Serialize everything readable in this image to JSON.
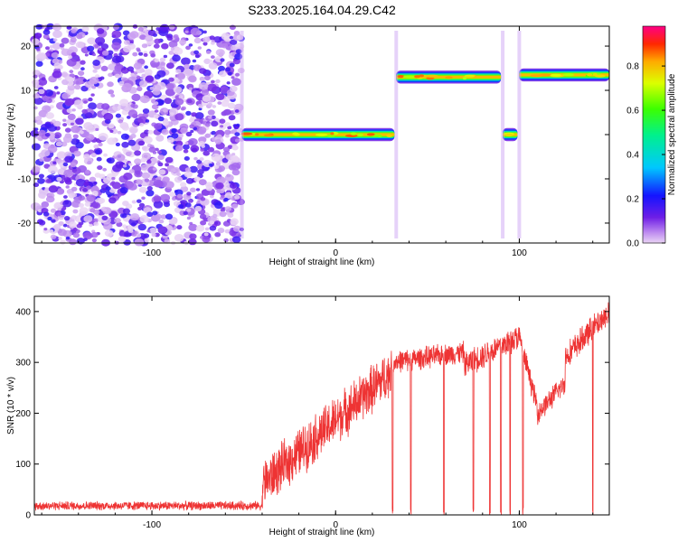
{
  "title": "S233.2025.164.04.29.C42",
  "chart_data": [
    {
      "type": "heatmap",
      "xlabel": "Height of straight line (km)",
      "ylabel": "Frequency (Hz)",
      "xlim": [
        -164,
        149
      ],
      "ylim": [
        -24.5,
        24.5
      ],
      "xticks": [
        -100,
        0,
        100
      ],
      "yticks": [
        -20,
        -10,
        0,
        10,
        20
      ],
      "colorbar": {
        "label": "Normalized spectral amplitude",
        "range": [
          0.0,
          0.98
        ],
        "ticks": [
          0.0,
          0.2,
          0.4,
          0.6,
          0.8
        ]
      },
      "noise_region_x": [
        -164,
        -51
      ],
      "ridges": [
        {
          "x": [
            -51,
            32
          ],
          "freq": 0,
          "peak": 0.9
        },
        {
          "x": [
            33,
            90
          ],
          "freq": 13,
          "peak": 0.9
        },
        {
          "x": [
            91,
            99
          ],
          "freq": 0,
          "peak": 0.8
        },
        {
          "x": [
            100,
            149
          ],
          "freq": 13.5,
          "peak": 0.85
        }
      ]
    },
    {
      "type": "line",
      "xlabel": "Height of straight line (km)",
      "ylabel": "SNR (10 * v/v)",
      "xlim": [
        -164,
        149
      ],
      "ylim": [
        0,
        430
      ],
      "xticks": [
        -100,
        0,
        100
      ],
      "yticks": [
        0,
        100,
        200,
        300,
        400
      ],
      "color": "#ee3333",
      "segments": [
        {
          "x": [
            -164,
            -40
          ],
          "mean": 18,
          "noise": 10
        },
        {
          "x": [
            -40,
            30
          ],
          "start": 60,
          "end": 280,
          "noise": 55
        },
        {
          "x": [
            30,
            70
          ],
          "start": 300,
          "end": 320,
          "noise": 25
        },
        {
          "x": [
            70,
            100
          ],
          "start": 295,
          "end": 350,
          "noise": 30
        },
        {
          "x": [
            100,
            110
          ],
          "start": 350,
          "end": 210,
          "noise": 25
        },
        {
          "x": [
            110,
            125
          ],
          "start": 200,
          "end": 260,
          "noise": 25
        },
        {
          "x": [
            125,
            149
          ],
          "start": 310,
          "end": 400,
          "noise": 30
        }
      ],
      "dropouts": [
        31,
        41,
        59,
        75,
        84,
        90,
        95,
        102,
        140
      ]
    }
  ]
}
